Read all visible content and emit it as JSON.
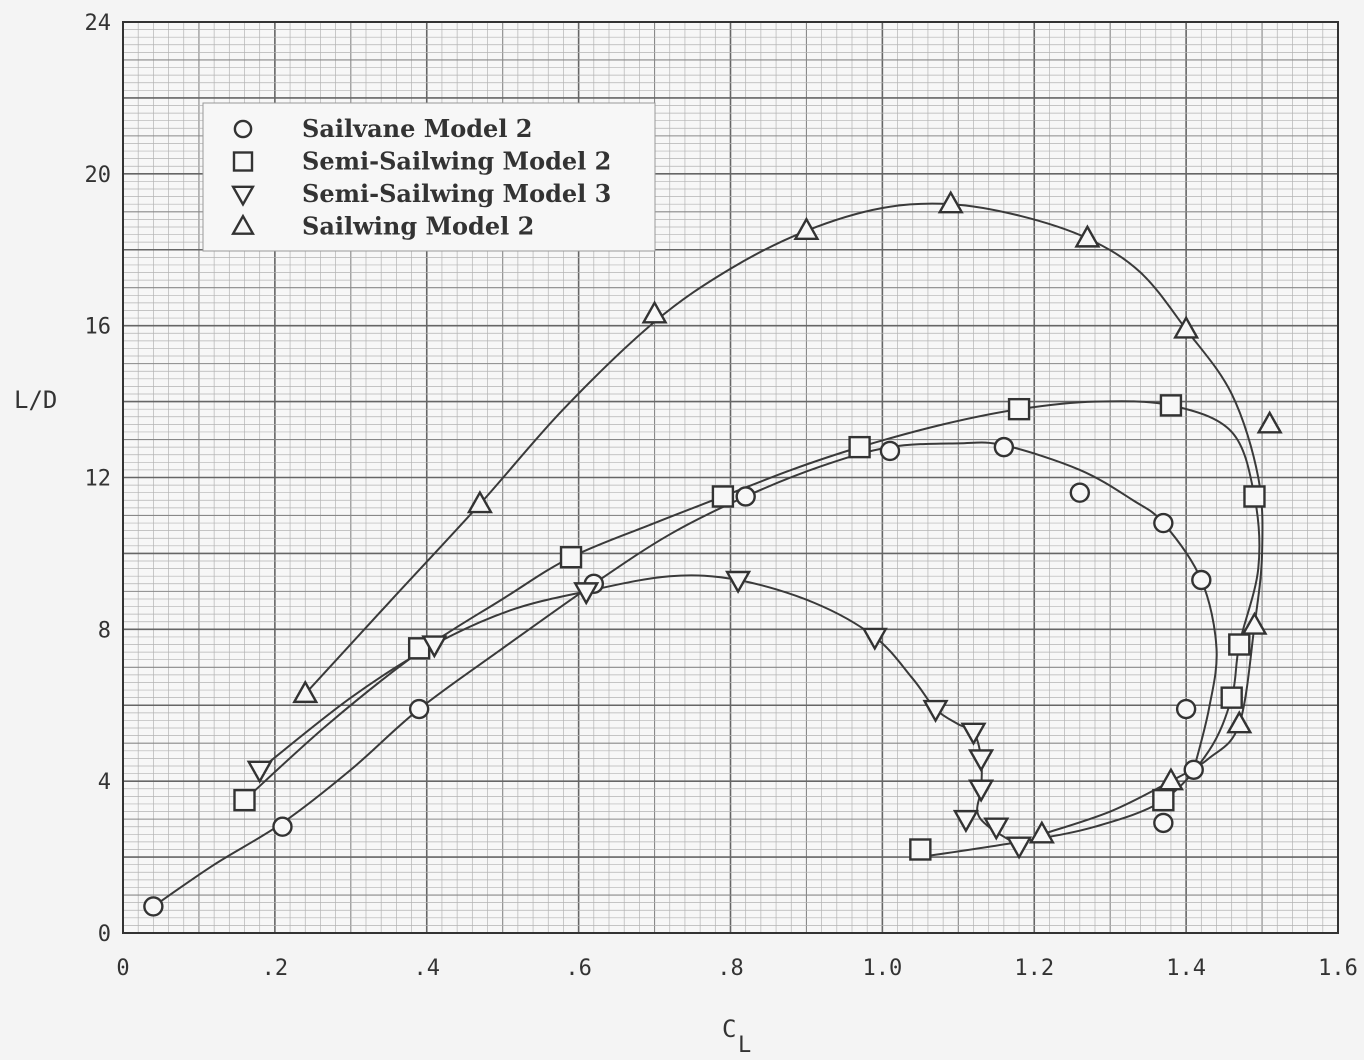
{
  "chart_data": {
    "type": "scatter",
    "title": "",
    "xlabel": "C",
    "xlabel_sub": "L",
    "ylabel": "L/D",
    "xlim": [
      0,
      1.6
    ],
    "ylim": [
      0,
      24
    ],
    "grid": true,
    "legend_position": "top-left",
    "x_ticks": [
      {
        "value": 0,
        "label": "0"
      },
      {
        "value": 0.2,
        "label": ".2"
      },
      {
        "value": 0.4,
        "label": ".4"
      },
      {
        "value": 0.6,
        "label": ".6"
      },
      {
        "value": 0.8,
        "label": ".8"
      },
      {
        "value": 1.0,
        "label": "1.0"
      },
      {
        "value": 1.2,
        "label": "1.2"
      },
      {
        "value": 1.4,
        "label": "1.4"
      },
      {
        "value": 1.6,
        "label": "1.6"
      }
    ],
    "y_ticks": [
      {
        "value": 0,
        "label": "0"
      },
      {
        "value": 4,
        "label": "4"
      },
      {
        "value": 8,
        "label": "8"
      },
      {
        "value": 12,
        "label": "12"
      },
      {
        "value": 16,
        "label": "16"
      },
      {
        "value": 20,
        "label": "20"
      },
      {
        "value": 24,
        "label": "24"
      }
    ],
    "series": [
      {
        "name": "Sailvane Model 2",
        "marker": "circle",
        "points": [
          [
            0.04,
            0.7
          ],
          [
            0.21,
            2.8
          ],
          [
            0.39,
            5.9
          ],
          [
            0.62,
            9.2
          ],
          [
            0.82,
            11.5
          ],
          [
            1.01,
            12.7
          ],
          [
            1.16,
            12.8
          ],
          [
            1.26,
            11.6
          ],
          [
            1.37,
            10.8
          ],
          [
            1.42,
            9.3
          ],
          [
            1.4,
            5.9
          ],
          [
            1.41,
            4.3
          ],
          [
            1.37,
            2.9
          ]
        ],
        "curve": [
          [
            0.04,
            0.7
          ],
          [
            0.12,
            1.8
          ],
          [
            0.21,
            2.9
          ],
          [
            0.3,
            4.3
          ],
          [
            0.39,
            5.9
          ],
          [
            0.5,
            7.5
          ],
          [
            0.62,
            9.2
          ],
          [
            0.72,
            10.5
          ],
          [
            0.82,
            11.5
          ],
          [
            0.92,
            12.3
          ],
          [
            1.01,
            12.8
          ],
          [
            1.1,
            12.9
          ],
          [
            1.16,
            12.85
          ],
          [
            1.26,
            12.2
          ],
          [
            1.33,
            11.4
          ],
          [
            1.37,
            10.8
          ],
          [
            1.42,
            9.3
          ],
          [
            1.44,
            7.5
          ],
          [
            1.43,
            5.9
          ],
          [
            1.41,
            4.3
          ]
        ]
      },
      {
        "name": "Semi-Sailwing Model 2",
        "marker": "square",
        "points": [
          [
            0.16,
            3.5
          ],
          [
            0.39,
            7.5
          ],
          [
            0.59,
            9.9
          ],
          [
            0.79,
            11.5
          ],
          [
            0.97,
            12.8
          ],
          [
            1.18,
            13.8
          ],
          [
            1.38,
            13.9
          ],
          [
            1.49,
            11.5
          ],
          [
            1.47,
            7.6
          ],
          [
            1.46,
            6.2
          ],
          [
            1.37,
            3.5
          ],
          [
            1.05,
            2.2
          ]
        ],
        "curve": [
          [
            0.16,
            3.5
          ],
          [
            0.27,
            5.5
          ],
          [
            0.39,
            7.4
          ],
          [
            0.5,
            8.8
          ],
          [
            0.59,
            9.9
          ],
          [
            0.7,
            10.8
          ],
          [
            0.79,
            11.5
          ],
          [
            0.88,
            12.2
          ],
          [
            0.97,
            12.8
          ],
          [
            1.08,
            13.4
          ],
          [
            1.18,
            13.8
          ],
          [
            1.28,
            14.0
          ],
          [
            1.38,
            13.9
          ],
          [
            1.46,
            13.2
          ],
          [
            1.49,
            11.5
          ],
          [
            1.495,
            9.6
          ],
          [
            1.47,
            7.6
          ],
          [
            1.46,
            6.2
          ],
          [
            1.43,
            4.8
          ],
          [
            1.37,
            3.5
          ],
          [
            1.28,
            2.8
          ],
          [
            1.18,
            2.4
          ],
          [
            1.05,
            2.0
          ]
        ]
      },
      {
        "name": "Semi-Sailwing Model 3",
        "marker": "triangle-down",
        "points": [
          [
            0.18,
            4.3
          ],
          [
            0.41,
            7.6
          ],
          [
            0.61,
            9.0
          ],
          [
            0.81,
            9.3
          ],
          [
            0.99,
            7.8
          ],
          [
            1.07,
            5.9
          ],
          [
            1.12,
            5.3
          ],
          [
            1.13,
            4.6
          ],
          [
            1.13,
            3.8
          ],
          [
            1.11,
            3.0
          ],
          [
            1.15,
            2.8
          ],
          [
            1.18,
            2.3
          ]
        ],
        "curve": [
          [
            0.18,
            4.3
          ],
          [
            0.3,
            6.2
          ],
          [
            0.41,
            7.6
          ],
          [
            0.51,
            8.5
          ],
          [
            0.61,
            9.0
          ],
          [
            0.72,
            9.4
          ],
          [
            0.81,
            9.3
          ],
          [
            0.91,
            8.7
          ],
          [
            0.99,
            7.8
          ],
          [
            1.04,
            6.7
          ],
          [
            1.07,
            5.9
          ],
          [
            1.1,
            5.5
          ],
          [
            1.12,
            5.3
          ],
          [
            1.13,
            4.6
          ],
          [
            1.13,
            3.8
          ],
          [
            1.125,
            3.2
          ],
          [
            1.14,
            2.8
          ],
          [
            1.18,
            2.3
          ]
        ]
      },
      {
        "name": "Sailwing Model 2",
        "marker": "triangle-up",
        "points": [
          [
            0.24,
            6.3
          ],
          [
            0.47,
            11.3
          ],
          [
            0.7,
            16.3
          ],
          [
            0.9,
            18.5
          ],
          [
            1.09,
            19.2
          ],
          [
            1.27,
            18.3
          ],
          [
            1.4,
            15.9
          ],
          [
            1.51,
            13.4
          ],
          [
            1.49,
            8.1
          ],
          [
            1.47,
            5.5
          ],
          [
            1.38,
            4.0
          ],
          [
            1.21,
            2.6
          ]
        ],
        "curve": [
          [
            0.24,
            6.3
          ],
          [
            0.35,
            8.7
          ],
          [
            0.47,
            11.3
          ],
          [
            0.58,
            13.8
          ],
          [
            0.7,
            16.1
          ],
          [
            0.8,
            17.5
          ],
          [
            0.9,
            18.5
          ],
          [
            1.0,
            19.1
          ],
          [
            1.09,
            19.2
          ],
          [
            1.18,
            18.9
          ],
          [
            1.27,
            18.3
          ],
          [
            1.34,
            17.4
          ],
          [
            1.4,
            15.9
          ],
          [
            1.46,
            14.2
          ],
          [
            1.495,
            12.0
          ],
          [
            1.5,
            10.0
          ],
          [
            1.49,
            8.1
          ],
          [
            1.47,
            5.5
          ],
          [
            1.43,
            4.6
          ],
          [
            1.38,
            4.0
          ],
          [
            1.3,
            3.2
          ],
          [
            1.21,
            2.6
          ]
        ]
      }
    ]
  }
}
